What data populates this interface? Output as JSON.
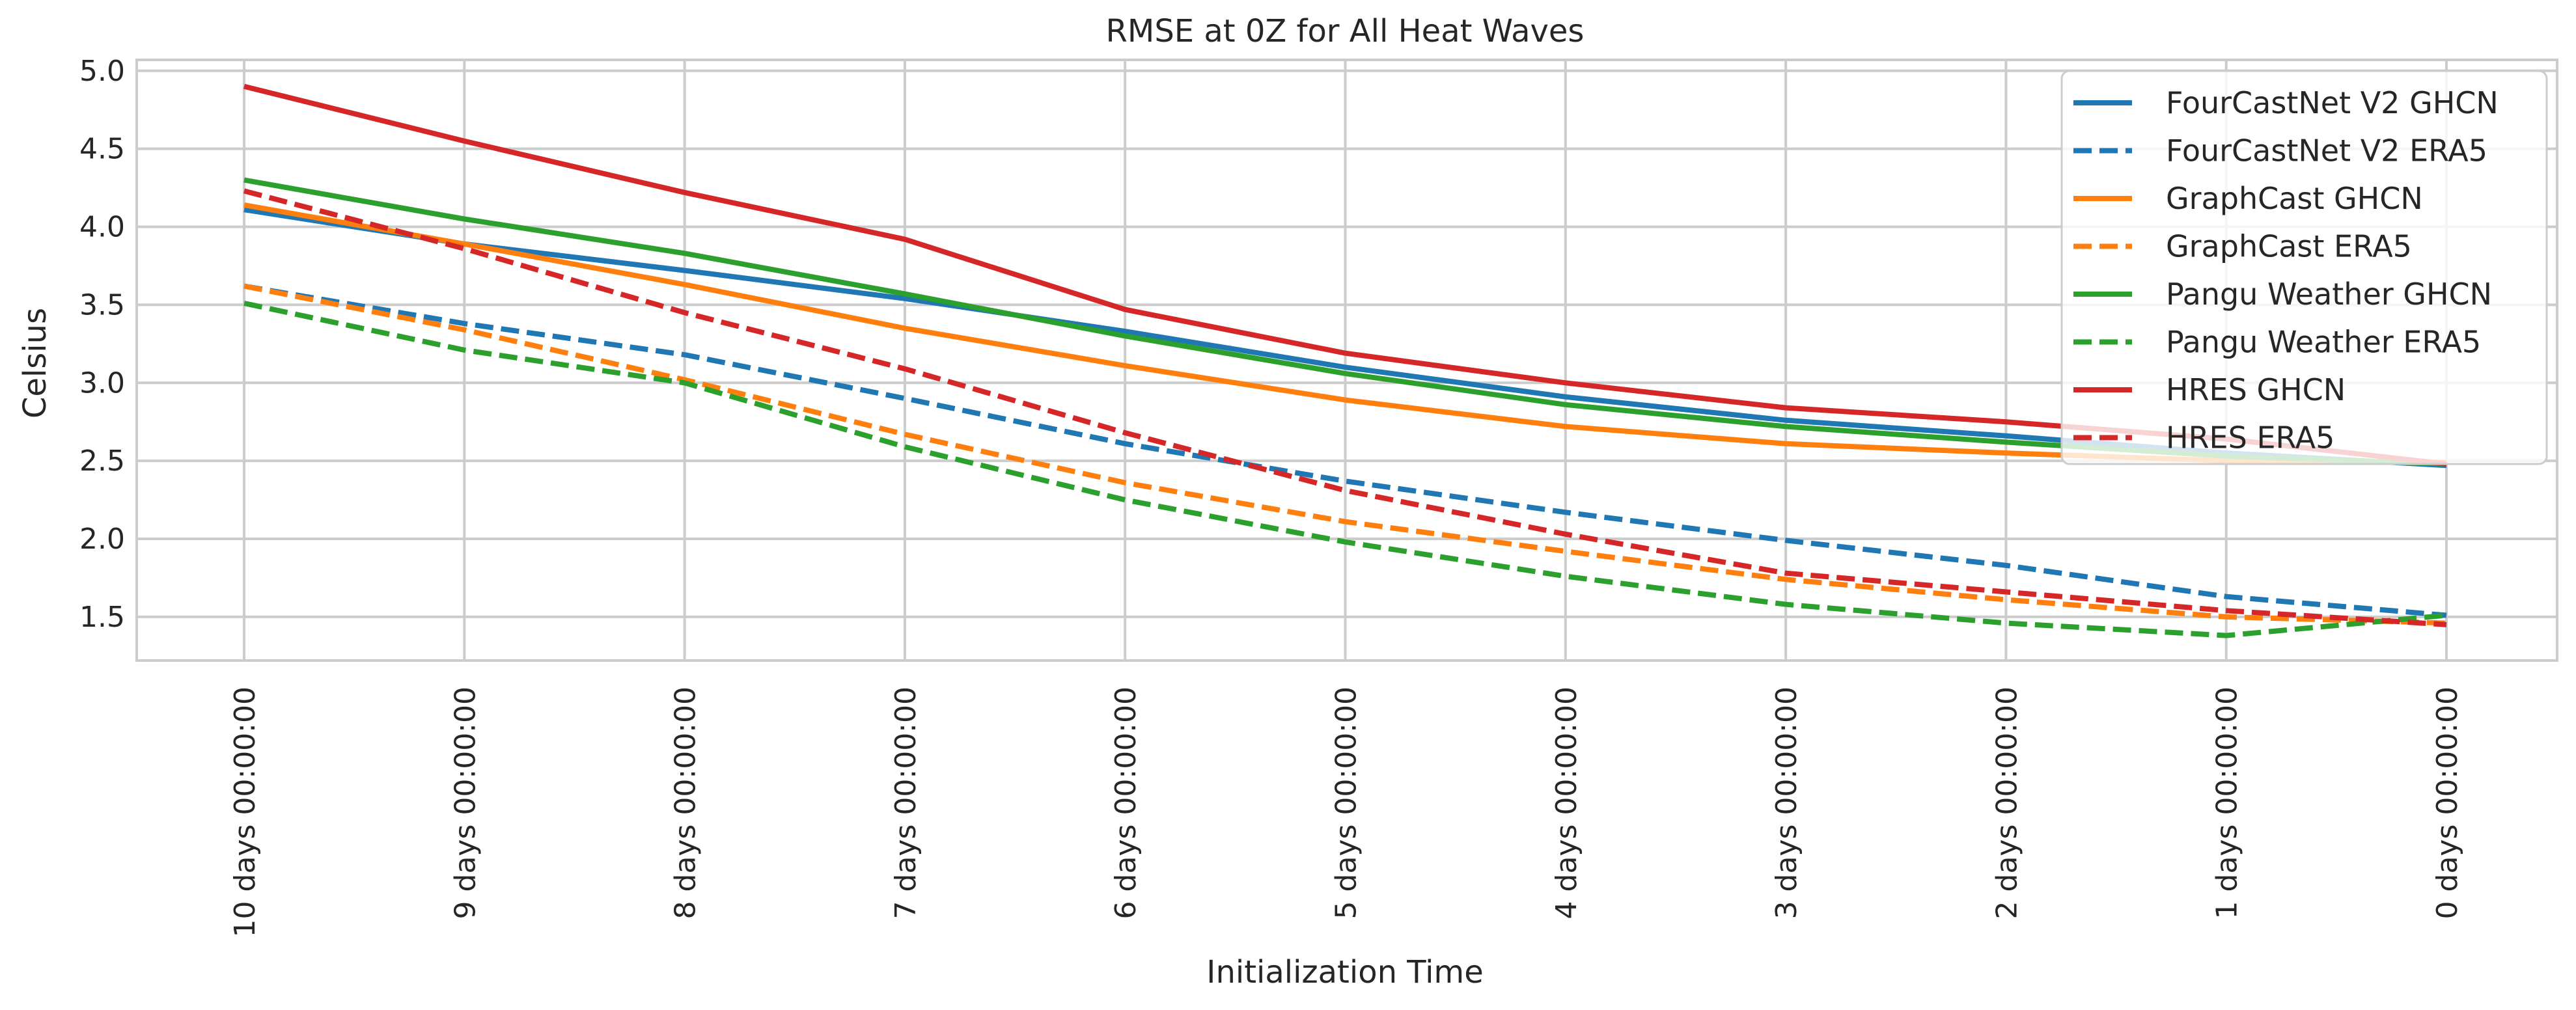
{
  "chart_data": {
    "type": "line",
    "title": "RMSE at 0Z for All Heat Waves",
    "xlabel": "Initialization Time",
    "ylabel": "Celsius",
    "categories": [
      "10 days 00:00:00",
      "9 days 00:00:00",
      "8 days 00:00:00",
      "7 days 00:00:00",
      "6 days 00:00:00",
      "5 days 00:00:00",
      "4 days 00:00:00",
      "3 days 00:00:00",
      "2 days 00:00:00",
      "1 days 00:00:00",
      "0 days 00:00:00"
    ],
    "ylim": [
      1.22,
      5.07
    ],
    "yticks": [
      "1.5",
      "2.0",
      "2.5",
      "3.0",
      "3.5",
      "4.0",
      "4.5",
      "5.0"
    ],
    "grid": true,
    "legend_position": "top-right",
    "series": [
      {
        "name": "FourCastNet V2 GHCN",
        "color": "#1f77b4",
        "style": "solid",
        "values": [
          4.11,
          3.89,
          3.72,
          3.54,
          3.33,
          3.1,
          2.91,
          2.76,
          2.66,
          2.55,
          2.47
        ]
      },
      {
        "name": "FourCastNet V2 ERA5",
        "color": "#1f77b4",
        "style": "dashed",
        "values": [
          3.62,
          3.38,
          3.18,
          2.9,
          2.61,
          2.37,
          2.17,
          1.99,
          1.83,
          1.63,
          1.51
        ]
      },
      {
        "name": "GraphCast GHCN",
        "color": "#ff7f0e",
        "style": "solid",
        "values": [
          4.14,
          3.89,
          3.63,
          3.35,
          3.11,
          2.89,
          2.72,
          2.61,
          2.55,
          2.5,
          2.49
        ]
      },
      {
        "name": "GraphCast ERA5",
        "color": "#ff7f0e",
        "style": "dashed",
        "values": [
          3.62,
          3.34,
          3.02,
          2.67,
          2.36,
          2.11,
          1.92,
          1.74,
          1.61,
          1.5,
          1.46
        ]
      },
      {
        "name": "Pangu Weather GHCN",
        "color": "#2ca02c",
        "style": "solid",
        "values": [
          4.3,
          4.05,
          3.83,
          3.57,
          3.3,
          3.06,
          2.86,
          2.72,
          2.62,
          2.53,
          2.48
        ]
      },
      {
        "name": "Pangu Weather ERA5",
        "color": "#2ca02c",
        "style": "dashed",
        "values": [
          3.51,
          3.21,
          3.0,
          2.59,
          2.25,
          1.98,
          1.76,
          1.58,
          1.46,
          1.38,
          1.51
        ]
      },
      {
        "name": "HRES GHCN",
        "color": "#d62728",
        "style": "solid",
        "values": [
          4.9,
          4.55,
          4.22,
          3.92,
          3.47,
          3.19,
          3.0,
          2.84,
          2.75,
          2.64,
          2.48
        ]
      },
      {
        "name": "HRES ERA5",
        "color": "#d62728",
        "style": "dashed",
        "values": [
          4.23,
          3.86,
          3.45,
          3.09,
          2.68,
          2.31,
          2.03,
          1.78,
          1.66,
          1.54,
          1.45
        ]
      }
    ]
  }
}
